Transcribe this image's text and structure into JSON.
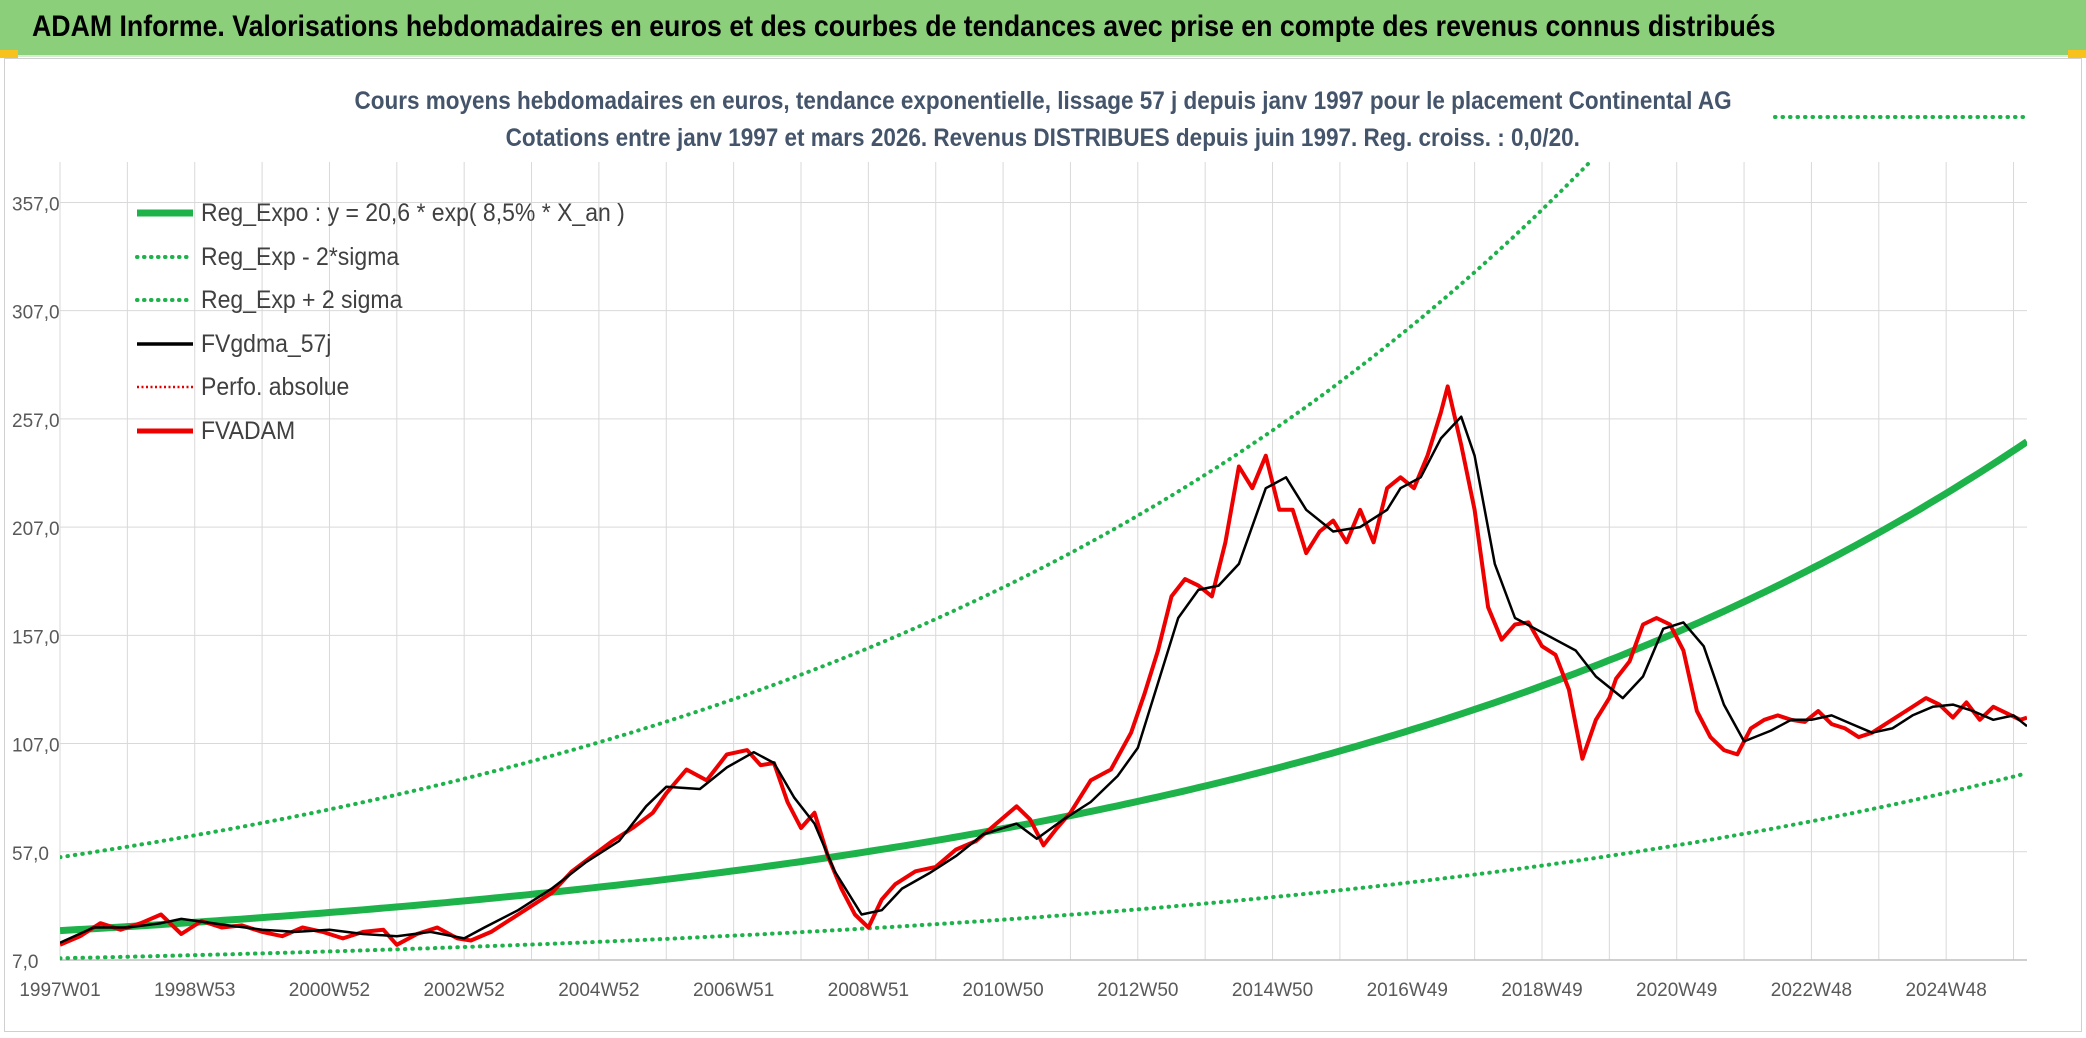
{
  "header": {
    "title": "ADAM Informe. Valorisations hebdomadaires en euros et des courbes de tendances avec prise en compte des revenus connus distribués"
  },
  "chart_data": {
    "type": "line",
    "title": "Cours moyens hebdomadaires en euros, tendance exponentielle, lissage 57 j depuis janv 1997 pour le placement Continental AG",
    "subtitle": "Cotations entre janv 1997 et mars 2026. Revenus DISTRIBUES depuis juin 1997. Reg. croiss. : 0,0/20.",
    "xlabel": "",
    "ylabel": "",
    "xlim": [
      1997.0,
      2026.2
    ],
    "ylim": [
      7,
      372
    ],
    "yticks": [
      7,
      57,
      107,
      157,
      207,
      257,
      307,
      357
    ],
    "ytick_labels": [
      "7,0",
      "57,0",
      "107,0",
      "157,0",
      "207,0",
      "257,0",
      "307,0",
      "357,0"
    ],
    "xticks": [
      1997.0,
      1999.0,
      2001.0,
      2003.0,
      2005.0,
      2007.0,
      2009.0,
      2011.0,
      2013.0,
      2015.0,
      2017.0,
      2019.0,
      2021.0,
      2023.0,
      2025.0
    ],
    "xtick_labels": [
      "1997W01",
      "1998W53",
      "2000W52",
      "2002W52",
      "2004W52",
      "2006W51",
      "2008W51",
      "2010W50",
      "2012W50",
      "2014W50",
      "2016W49",
      "2018W49",
      "2020W49",
      "2022W48",
      "2024W48"
    ],
    "grid": true,
    "legend_position": "top-left",
    "colors": {
      "reg_expo": "#1db34a",
      "sigma_lines": "#1db34a",
      "fvgdma": "#000000",
      "perfo": "#e00000",
      "fvadam": "#ee0000",
      "axis_text": "#595959",
      "grid": "#d9d9d9"
    },
    "series": [
      {
        "name": "Reg_Expo : y = 20,6 * exp( 8,5% *  X_an )",
        "style": "solid-thick",
        "a": 20.6,
        "rate": 0.085,
        "x0": 1997.0,
        "x": [
          1997.0,
          2026.2
        ]
      },
      {
        "name": "Reg_Exp - 2*sigma",
        "style": "dotted",
        "a": 7.8,
        "rate": 0.085,
        "x0": 1997.0,
        "x": [
          1997.0,
          2026.2
        ]
      },
      {
        "name": "Reg_Exp + 2 sigma",
        "style": "dotted",
        "a": 54.5,
        "rate": 0.085,
        "x0": 1997.0,
        "x": [
          1997.0,
          2026.2
        ]
      },
      {
        "name": "FVgdma_57j",
        "style": "solid",
        "x": [
          1997.0,
          1997.5,
          1998.0,
          1998.5,
          1998.8,
          1999.5,
          2000.0,
          2000.5,
          2001.0,
          2001.5,
          2002.0,
          2002.5,
          2003.0,
          2003.3,
          2003.8,
          2004.3,
          2004.8,
          2005.3,
          2005.7,
          2006.0,
          2006.5,
          2006.9,
          2007.3,
          2007.6,
          2007.9,
          2008.2,
          2008.5,
          2008.9,
          2009.2,
          2009.5,
          2009.9,
          2010.3,
          2010.7,
          2011.2,
          2011.5,
          2011.9,
          2012.3,
          2012.7,
          2013.0,
          2013.3,
          2013.6,
          2013.9,
          2014.2,
          2014.5,
          2014.9,
          2015.2,
          2015.5,
          2015.9,
          2016.3,
          2016.7,
          2016.9,
          2017.2,
          2017.5,
          2017.8,
          2018.0,
          2018.3,
          2018.6,
          2018.9,
          2019.2,
          2019.5,
          2019.8,
          2020.2,
          2020.5,
          2020.8,
          2021.1,
          2021.4,
          2021.7,
          2022.0,
          2022.4,
          2022.7,
          2023.0,
          2023.3,
          2023.6,
          2023.9,
          2024.2,
          2024.5,
          2024.8,
          2025.1,
          2025.4,
          2025.7,
          2026.0,
          2026.2
        ],
        "y": [
          15,
          22,
          22,
          24,
          26,
          23,
          21,
          20,
          21,
          19,
          18,
          20,
          17,
          22,
          30,
          40,
          52,
          62,
          78,
          87,
          86,
          96,
          103,
          98,
          82,
          70,
          48,
          28,
          30,
          40,
          47,
          55,
          65,
          70,
          63,
          72,
          80,
          92,
          105,
          135,
          165,
          178,
          180,
          190,
          225,
          230,
          215,
          205,
          207,
          215,
          225,
          230,
          248,
          258,
          240,
          190,
          165,
          160,
          155,
          150,
          138,
          128,
          138,
          160,
          163,
          152,
          125,
          108,
          113,
          118,
          118,
          120,
          116,
          112,
          114,
          120,
          124,
          125,
          122,
          118,
          120,
          115
        ]
      },
      {
        "name": "Perfo. absolue",
        "style": "dotted-red",
        "x": [],
        "y": []
      },
      {
        "name": "FVADAM",
        "style": "solid-red",
        "x": [
          1997.0,
          1997.3,
          1997.6,
          1997.9,
          1998.2,
          1998.5,
          1998.8,
          1999.1,
          1999.4,
          1999.7,
          2000.0,
          2000.3,
          2000.6,
          2000.9,
          2001.2,
          2001.5,
          2001.8,
          2002.0,
          2002.3,
          2002.6,
          2002.9,
          2003.1,
          2003.4,
          2003.7,
          2004.0,
          2004.3,
          2004.6,
          2004.9,
          2005.2,
          2005.5,
          2005.8,
          2006.0,
          2006.3,
          2006.6,
          2006.9,
          2007.2,
          2007.4,
          2007.6,
          2007.8,
          2008.0,
          2008.2,
          2008.4,
          2008.6,
          2008.8,
          2009.0,
          2009.2,
          2009.4,
          2009.7,
          2010.0,
          2010.3,
          2010.6,
          2010.9,
          2011.2,
          2011.4,
          2011.6,
          2011.8,
          2012.0,
          2012.3,
          2012.6,
          2012.9,
          2013.1,
          2013.3,
          2013.5,
          2013.7,
          2013.9,
          2014.1,
          2014.3,
          2014.5,
          2014.7,
          2014.9,
          2015.1,
          2015.3,
          2015.5,
          2015.7,
          2015.9,
          2016.1,
          2016.3,
          2016.5,
          2016.7,
          2016.9,
          2017.1,
          2017.3,
          2017.5,
          2017.6,
          2017.8,
          2018.0,
          2018.2,
          2018.4,
          2018.6,
          2018.8,
          2019.0,
          2019.2,
          2019.4,
          2019.6,
          2019.8,
          2020.0,
          2020.1,
          2020.3,
          2020.5,
          2020.7,
          2020.9,
          2021.1,
          2021.3,
          2021.5,
          2021.7,
          2021.9,
          2022.1,
          2022.3,
          2022.5,
          2022.7,
          2022.9,
          2023.1,
          2023.3,
          2023.5,
          2023.7,
          2023.9,
          2024.1,
          2024.3,
          2024.5,
          2024.7,
          2024.9,
          2025.1,
          2025.3,
          2025.5,
          2025.7,
          2025.9,
          2026.1,
          2026.2
        ],
        "y": [
          14,
          18,
          24,
          21,
          24,
          28,
          19,
          25,
          22,
          23,
          20,
          18,
          22,
          20,
          17,
          20,
          21,
          14,
          19,
          22,
          17,
          16,
          20,
          26,
          32,
          38,
          48,
          55,
          62,
          68,
          75,
          84,
          95,
          90,
          102,
          104,
          97,
          98,
          80,
          68,
          75,
          55,
          40,
          28,
          22,
          35,
          42,
          48,
          50,
          58,
          62,
          70,
          78,
          72,
          60,
          68,
          75,
          90,
          95,
          112,
          130,
          150,
          175,
          183,
          180,
          175,
          200,
          235,
          225,
          240,
          215,
          215,
          195,
          205,
          210,
          200,
          215,
          200,
          225,
          230,
          225,
          240,
          260,
          272,
          245,
          215,
          170,
          155,
          162,
          163,
          152,
          148,
          132,
          100,
          118,
          128,
          137,
          145,
          162,
          165,
          162,
          150,
          122,
          110,
          104,
          102,
          114,
          118,
          120,
          118,
          117,
          122,
          116,
          114,
          110,
          112,
          116,
          120,
          124,
          128,
          125,
          119,
          126,
          118,
          124,
          121,
          118,
          119
        ]
      }
    ]
  }
}
